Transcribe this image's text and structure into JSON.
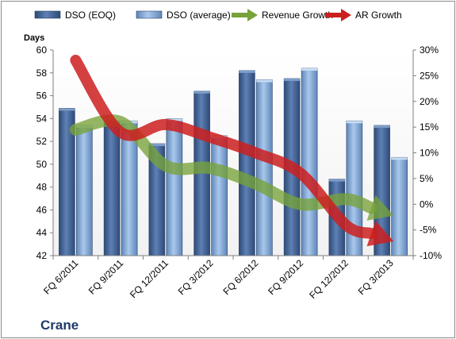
{
  "chart_data": {
    "type": "bar",
    "categories": [
      "FQ 6/2011",
      "FQ 9/2011",
      "FQ 12/2011",
      "FQ 3/2012",
      "FQ 6/2012",
      "FQ 9/2012",
      "FQ 12/2012",
      "FQ 3/2013"
    ],
    "series": [
      {
        "name": "DSO (EOQ)",
        "kind": "bar",
        "axis": "left",
        "color": "#4a6a9a",
        "values": [
          54.9,
          53.8,
          51.8,
          56.4,
          58.2,
          57.5,
          48.7,
          53.4
        ]
      },
      {
        "name": "DSO (average)",
        "kind": "bar",
        "axis": "left",
        "color": "#8eb4e3",
        "values": [
          53.4,
          53.8,
          54.0,
          52.5,
          57.4,
          58.4,
          53.8,
          50.6
        ]
      },
      {
        "name": "Revenue Growth",
        "kind": "arrow",
        "axis": "right",
        "color": "#77a33a",
        "values": [
          0.145,
          0.16,
          0.075,
          0.07,
          0.04,
          0.0,
          0.01,
          -0.02
        ]
      },
      {
        "name": "AR Growth",
        "kind": "arrow",
        "axis": "right",
        "color": "#cc1f1f",
        "values": [
          0.28,
          0.14,
          0.155,
          0.13,
          0.1,
          0.06,
          -0.04,
          -0.07
        ]
      }
    ],
    "ylabel": "Days",
    "ylim": [
      42,
      60
    ],
    "yticks": [
      "42",
      "44",
      "46",
      "48",
      "50",
      "52",
      "54",
      "56",
      "58",
      "60"
    ],
    "y2lim": [
      -0.1,
      0.3
    ],
    "y2ticks": [
      "-10%",
      "-5%",
      "0%",
      "5%",
      "10%",
      "15%",
      "20%",
      "25%",
      "30%"
    ],
    "grid": false,
    "legend_position": "top",
    "company": "Crane"
  }
}
